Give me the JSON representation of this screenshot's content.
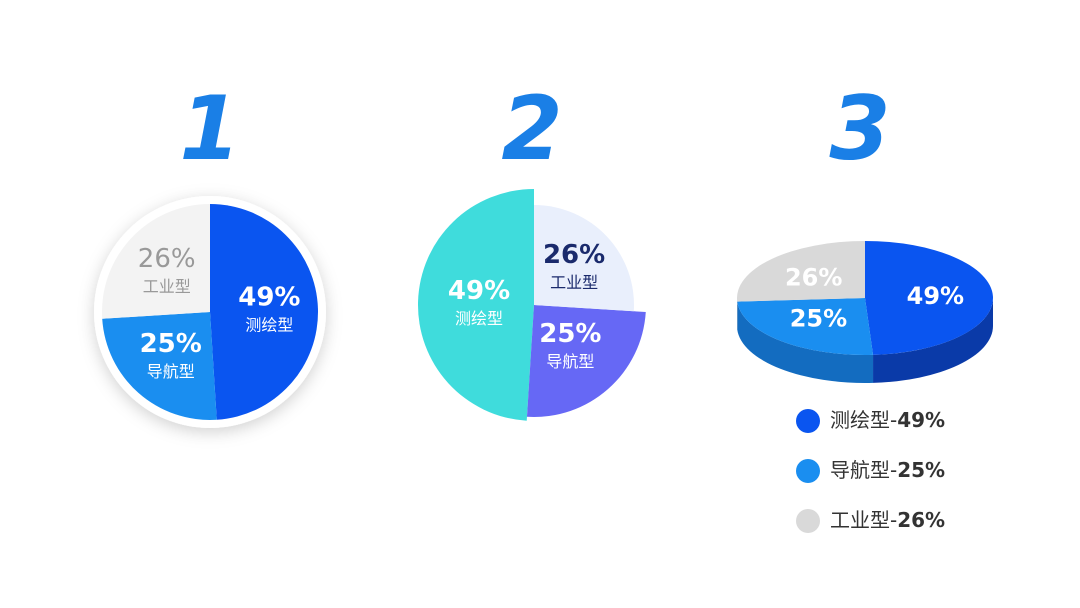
{
  "chart_data": [
    {
      "type": "pie",
      "title": "1",
      "categories": [
        "测绘型",
        "导航型",
        "工业型"
      ],
      "values": [
        49,
        25,
        26
      ],
      "value_labels": [
        "49%",
        "25%",
        "26%"
      ],
      "colors": [
        "#0a55f0",
        "#1a8ef0",
        "#f3f3f3"
      ]
    },
    {
      "type": "pie",
      "title": "2",
      "categories": [
        "测绘型",
        "导航型",
        "工业型"
      ],
      "values": [
        49,
        25,
        26
      ],
      "value_labels": [
        "49%",
        "25%",
        "26%"
      ],
      "colors": [
        "#3fdcdc",
        "#6668f5",
        "#e9effc"
      ]
    },
    {
      "type": "pie",
      "title": "3",
      "three_d": true,
      "categories": [
        "测绘型",
        "导航型",
        "工业型"
      ],
      "values": [
        49,
        25,
        26
      ],
      "value_labels": [
        "49%",
        "25%",
        "26%"
      ],
      "colors": [
        "#0a55f0",
        "#1a8ef0",
        "#d9d9d9"
      ],
      "legend": true,
      "legend_separator": "-"
    }
  ]
}
